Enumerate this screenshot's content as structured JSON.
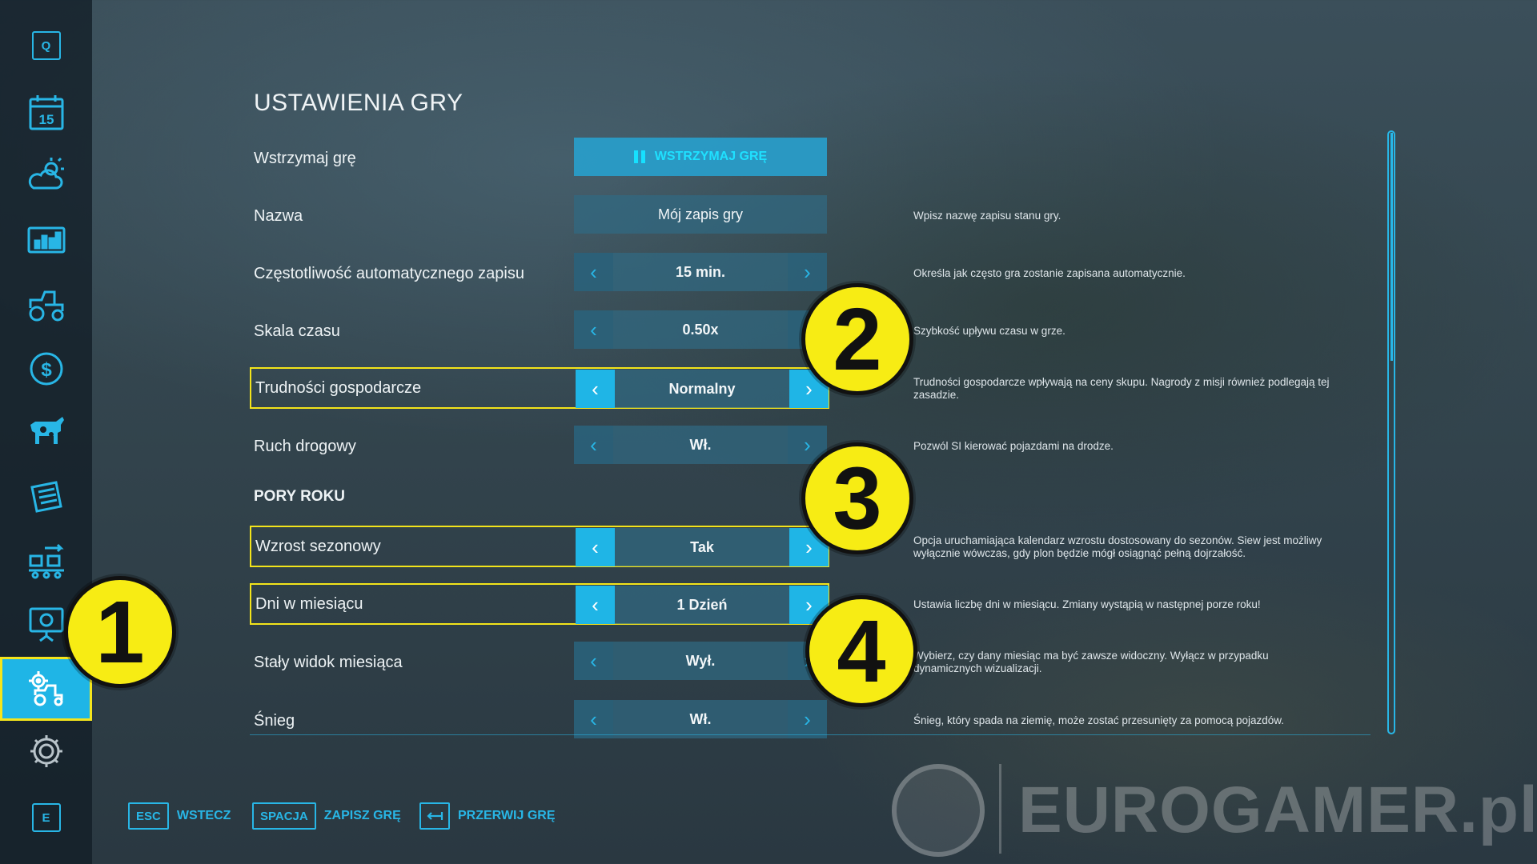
{
  "sidebar": {
    "top_key": "Q",
    "calendar_day": "15",
    "bottom_key": "E",
    "items": [
      {
        "icon": "calendar-icon"
      },
      {
        "icon": "weather-icon"
      },
      {
        "icon": "stats-chart-icon"
      },
      {
        "icon": "tractor-icon"
      },
      {
        "icon": "dollar-icon"
      },
      {
        "icon": "cow-icon"
      },
      {
        "icon": "contracts-icon"
      },
      {
        "icon": "production-icon"
      },
      {
        "icon": "help-presentation-icon"
      },
      {
        "icon": "game-settings-icon",
        "active": true
      },
      {
        "icon": "general-settings-icon"
      }
    ]
  },
  "page": {
    "title": "USTAWIENIA GRY"
  },
  "settings": {
    "pause": {
      "label": "Wstrzymaj grę",
      "button": "WSTRZYMAJ GRĘ"
    },
    "name": {
      "label": "Nazwa",
      "value": "Mój zapis gry",
      "desc": "Wpisz nazwę zapisu stanu gry."
    },
    "autosave": {
      "label": "Częstotliwość automatycznego zapisu",
      "value": "15 min.",
      "desc": "Określa jak często gra zostanie zapisana automatycznie."
    },
    "timescale": {
      "label": "Skala czasu",
      "value": "0.50x",
      "desc": "Szybkość upływu czasu w grze."
    },
    "economy": {
      "label": "Trudności gospodarcze",
      "value": "Normalny",
      "desc": "Trudności gospodarcze wpływają na ceny skupu.  Nagrody z misji również podlegają tej zasadzie."
    },
    "traffic": {
      "label": "Ruch drogowy",
      "value": "Wł.",
      "desc": "Pozwól SI kierować pojazdami na drodze."
    },
    "seasons_title": "PORY ROKU",
    "growth": {
      "label": "Wzrost sezonowy",
      "value": "Tak",
      "desc": "Opcja uruchamiająca kalendarz wzrostu dostosowany do sezonów. Siew jest możliwy wyłącznie wówczas, gdy plon będzie mógł osiągnąć pełną dojrzałość."
    },
    "days": {
      "label": "Dni w miesiącu",
      "value": "1 Dzień",
      "desc": "Ustawia liczbę dni w miesiącu. Zmiany wystąpią w następnej porze roku!"
    },
    "fixed_view": {
      "label": "Stały widok miesiąca",
      "value": "Wył.",
      "desc": "Wybierz, czy dany miesiąc ma być zawsze widoczny. Wyłącz w przypadku dynamicznych wizualizacji."
    },
    "snow": {
      "label": "Śnieg",
      "value": "Wł.",
      "desc": "Śnieg, który spada na ziemię, może zostać przesunięty za pomocą pojazdów."
    }
  },
  "bottom_bar": {
    "back": {
      "key": "ESC",
      "label": "WSTECZ"
    },
    "save": {
      "key": "SPACJA",
      "label": "ZAPISZ GRĘ"
    },
    "quit": {
      "key_icon": "exit-arrow-icon",
      "label": "PRZERWIJ GRĘ"
    }
  },
  "callouts": [
    "1",
    "2",
    "3",
    "4"
  ],
  "watermark": {
    "text": "EUROGAMER.pl"
  },
  "colors": {
    "accent": "#1fb5e6",
    "highlight": "#f3e41a",
    "callout": "#f7ec14"
  }
}
